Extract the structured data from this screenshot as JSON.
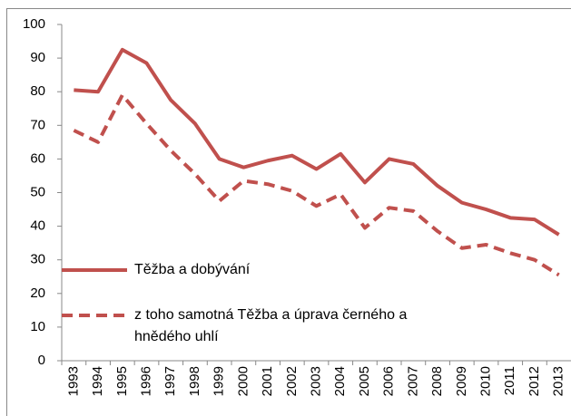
{
  "chart_data": {
    "type": "line",
    "categories": [
      "1993",
      "1994",
      "1995",
      "1996",
      "1997",
      "1998",
      "1999",
      "2000",
      "2001",
      "2002",
      "2003",
      "2004",
      "2005",
      "2006",
      "2007",
      "2008",
      "2009",
      "2010",
      "2011",
      "2012",
      "2013"
    ],
    "series": [
      {
        "name": "Těžba a dobývání",
        "color": "#c0504d",
        "dash": false,
        "values": [
          80.5,
          80,
          92.5,
          88.5,
          77.5,
          70.5,
          60,
          57.5,
          59.5,
          61,
          57,
          61.5,
          53,
          60,
          58.5,
          52,
          47,
          45,
          42.5,
          42,
          37.5
        ]
      },
      {
        "name": "z toho samotná Těžba a úprava černého a hnědého uhlí",
        "color": "#c0504d",
        "dash": true,
        "values": [
          68.5,
          65,
          79,
          70.5,
          62.5,
          55.5,
          47.5,
          53.5,
          52.5,
          50.5,
          46,
          49.5,
          39.5,
          45.5,
          44.5,
          38.5,
          33.5,
          34.5,
          32,
          30,
          25.5
        ]
      }
    ],
    "ylim": [
      0,
      100
    ],
    "yticks": [
      0,
      10,
      20,
      30,
      40,
      50,
      60,
      70,
      80,
      90,
      100
    ],
    "grid": false
  }
}
